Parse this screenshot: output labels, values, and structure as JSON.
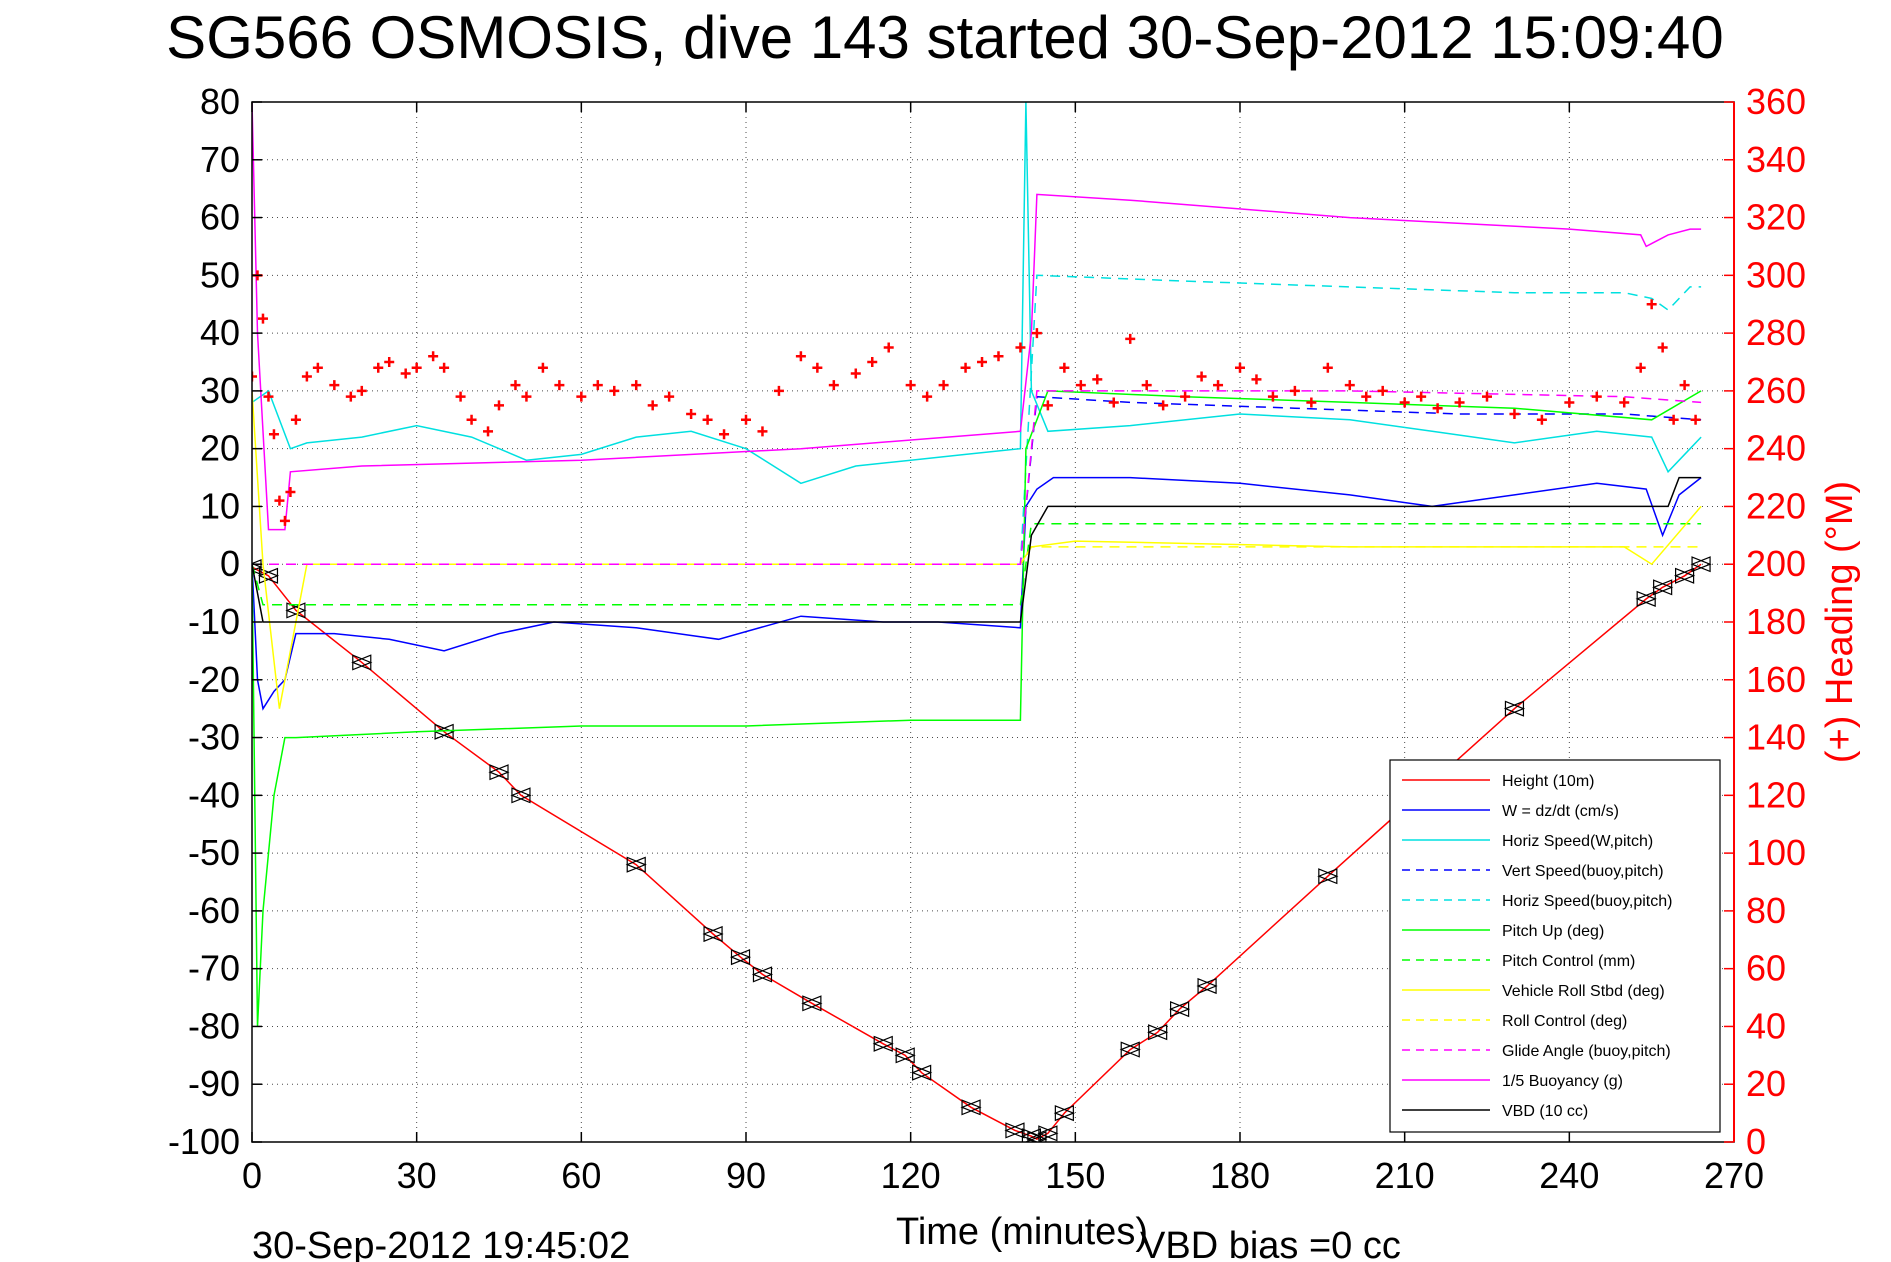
{
  "chart_data": {
    "type": "line",
    "title": "SG566 OSMOSIS, dive 143 started 30-Sep-2012 15:09:40",
    "xlabel": "Time (minutes)",
    "ylabel": "",
    "ylabel_right": "(+) Heading (°M)",
    "xlim": [
      0,
      270
    ],
    "ylim": [
      -100,
      80
    ],
    "ylim_right": [
      0,
      360
    ],
    "x_ticks": [
      "0",
      "30",
      "60",
      "90",
      "120",
      "150",
      "180",
      "210",
      "240",
      "270"
    ],
    "y_ticks": [
      "80",
      "70",
      "60",
      "50",
      "40",
      "30",
      "20",
      "10",
      "0",
      "-10",
      "-20",
      "-30",
      "-40",
      "-50",
      "-60",
      "-70",
      "-80",
      "-90",
      "-100"
    ],
    "y_right_ticks": [
      "360",
      "340",
      "320",
      "300",
      "280",
      "260",
      "240",
      "220",
      "200",
      "180",
      "160",
      "140",
      "120",
      "100",
      "80",
      "60",
      "40",
      "20",
      "0"
    ],
    "grid": true,
    "legend_position": "bottom-right",
    "series": [
      {
        "name": "Height (10m)",
        "color": "#ff0000",
        "style": "solid",
        "markers": "triangles",
        "x": [
          0,
          3,
          8,
          20,
          35,
          45,
          49,
          70,
          84,
          89,
          93,
          102,
          115,
          119,
          122,
          131,
          139,
          142,
          143,
          145,
          148,
          160,
          165,
          169,
          174,
          196,
          230,
          254,
          257,
          261,
          264
        ],
        "y": [
          -0.5,
          -2,
          -8,
          -17,
          -29,
          -36,
          -40,
          -52,
          -64,
          -68,
          -71,
          -76,
          -83,
          -85,
          -88,
          -94,
          -98,
          -99,
          -99.5,
          -98.5,
          -95,
          -84,
          -81,
          -77,
          -73,
          -54,
          -25,
          -6,
          -4,
          -2,
          0
        ]
      },
      {
        "name": "W = dz/dt (cm/s)",
        "color": "#0000ff",
        "style": "solid",
        "x": [
          0,
          1,
          2,
          4,
          6,
          8,
          15,
          25,
          35,
          45,
          55,
          70,
          85,
          100,
          115,
          125,
          140,
          141,
          143,
          146,
          160,
          180,
          200,
          215,
          230,
          245,
          254,
          257,
          260,
          264
        ],
        "y": [
          0,
          -20,
          -25,
          -22,
          -20,
          -12,
          -12,
          -13,
          -15,
          -12,
          -10,
          -11,
          -13,
          -9,
          -10,
          -10,
          -11,
          10,
          13,
          15,
          15,
          14,
          12,
          10,
          12,
          14,
          13,
          5,
          12,
          15
        ]
      },
      {
        "name": "Horiz Speed(W,pitch)",
        "color": "#00e0e0",
        "style": "solid",
        "x": [
          0,
          3,
          7,
          10,
          20,
          30,
          40,
          50,
          60,
          70,
          80,
          90,
          100,
          110,
          120,
          130,
          140,
          141,
          142,
          145,
          160,
          180,
          200,
          215,
          230,
          245,
          255,
          258,
          262,
          264
        ],
        "y": [
          28,
          30,
          20,
          21,
          22,
          24,
          22,
          18,
          19,
          22,
          23,
          20,
          14,
          17,
          18,
          19,
          20,
          80,
          30,
          23,
          24,
          26,
          25,
          23,
          21,
          23,
          22,
          16,
          20,
          22
        ]
      },
      {
        "name": "Vert Speed(buoy,pitch)",
        "color": "#0000ff",
        "style": "dashed",
        "x": [
          0,
          140,
          143,
          160,
          190,
          220,
          250,
          264
        ],
        "y": [
          0,
          0,
          29,
          28,
          27,
          26,
          26,
          25
        ]
      },
      {
        "name": "Horiz Speed(buoy,pitch)",
        "color": "#00e0e0",
        "style": "dashed",
        "x": [
          0,
          140,
          143,
          170,
          200,
          230,
          250,
          255,
          258,
          262,
          264
        ],
        "y": [
          0,
          0,
          50,
          49,
          48,
          47,
          47,
          46,
          44,
          48,
          48
        ]
      },
      {
        "name": "Pitch Up (deg)",
        "color": "#00ff00",
        "style": "solid",
        "x": [
          0,
          1,
          2,
          4,
          6,
          8,
          30,
          60,
          90,
          120,
          140,
          141,
          145,
          170,
          200,
          230,
          255,
          264
        ],
        "y": [
          0,
          -80,
          -60,
          -40,
          -30,
          -30,
          -29,
          -28,
          -28,
          -27,
          -27,
          20,
          30,
          29,
          28,
          27,
          25,
          30
        ]
      },
      {
        "name": "Pitch Control (mm)",
        "color": "#00ff00",
        "style": "dashed",
        "x": [
          0,
          2,
          140,
          142,
          264
        ],
        "y": [
          0,
          -7,
          -7,
          7,
          7
        ]
      },
      {
        "name": "Vehicle Roll Stbd (deg)",
        "color": "#ffff00",
        "style": "solid",
        "x": [
          0,
          2,
          5,
          10,
          50,
          100,
          140,
          142,
          150,
          200,
          250,
          255,
          264
        ],
        "y": [
          30,
          0,
          -25,
          0,
          0,
          0,
          0,
          3,
          4,
          3,
          3,
          0,
          10
        ]
      },
      {
        "name": "Roll Control (deg)",
        "color": "#ffff00",
        "style": "dashed",
        "x": [
          0,
          140,
          142,
          264
        ],
        "y": [
          0,
          0,
          3,
          3
        ]
      },
      {
        "name": "Glide Angle (buoy,pitch)",
        "color": "#ff00ff",
        "style": "dashed",
        "x": [
          0,
          140,
          143,
          200,
          250,
          264
        ],
        "y": [
          0,
          0,
          30,
          30,
          29,
          28
        ]
      },
      {
        "name": "1/5 Buoyancy (g)",
        "color": "#ff00ff",
        "style": "solid",
        "x": [
          0,
          1,
          3,
          6,
          7,
          20,
          60,
          100,
          140,
          142,
          143,
          160,
          200,
          240,
          253,
          254,
          258,
          262,
          264
        ],
        "y": [
          80,
          40,
          6,
          6,
          16,
          17,
          18,
          20,
          23,
          40,
          64,
          63,
          60,
          58,
          57,
          55,
          57,
          58,
          58
        ]
      },
      {
        "name": "VBD (10 cc)",
        "color": "#000000",
        "style": "solid",
        "x": [
          0,
          2,
          140,
          142,
          145,
          258,
          260,
          264
        ],
        "y": [
          0,
          -10,
          -10,
          5,
          10,
          10,
          15,
          15
        ]
      },
      {
        "name": "",
        "color": "#ff0000",
        "style": "markers-plus",
        "axis": "right",
        "x": [
          0,
          1,
          2,
          3,
          4,
          5,
          6,
          7,
          8,
          10,
          12,
          15,
          18,
          20,
          23,
          25,
          28,
          30,
          33,
          35,
          38,
          40,
          43,
          45,
          48,
          50,
          53,
          56,
          60,
          63,
          66,
          70,
          73,
          76,
          80,
          83,
          86,
          90,
          93,
          96,
          100,
          103,
          106,
          110,
          113,
          116,
          120,
          123,
          126,
          130,
          133,
          136,
          140,
          143,
          145,
          148,
          151,
          154,
          157,
          160,
          163,
          166,
          170,
          173,
          176,
          180,
          183,
          186,
          190,
          193,
          196,
          200,
          203,
          206,
          210,
          213,
          216,
          220,
          225,
          230,
          235,
          240,
          245,
          250,
          253,
          255,
          257,
          259,
          261,
          263
        ],
        "y": [
          265,
          300,
          285,
          258,
          245,
          222,
          215,
          225,
          250,
          265,
          268,
          262,
          258,
          260,
          268,
          270,
          266,
          268,
          272,
          268,
          258,
          250,
          246,
          255,
          262,
          258,
          268,
          262,
          258,
          262,
          260,
          262,
          255,
          258,
          252,
          250,
          245,
          250,
          246,
          260,
          272,
          268,
          262,
          266,
          270,
          275,
          262,
          258,
          262,
          268,
          270,
          272,
          275,
          280,
          255,
          268,
          262,
          264,
          256,
          278,
          262,
          255,
          258,
          265,
          262,
          268,
          264,
          258,
          260,
          256,
          268,
          262,
          258,
          260,
          256,
          258,
          254,
          256,
          258,
          252,
          250,
          256,
          258,
          256,
          268,
          290,
          275,
          250,
          262,
          250
        ]
      }
    ],
    "footer_left": "30-Sep-2012 19:45:02",
    "footer_right": "VBD bias =0 cc"
  }
}
